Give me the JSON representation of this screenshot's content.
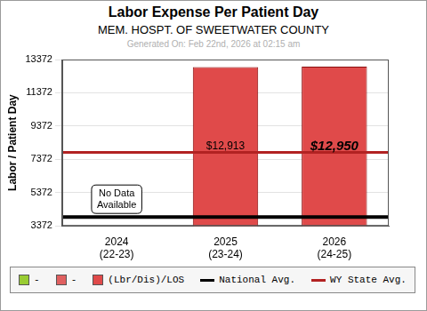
{
  "chart_data": {
    "type": "bar",
    "title": "Labor Expense Per Patient Day",
    "subtitle": "MEM. HOSPT. OF SWEETWATER COUNTY",
    "note": "Generated On: Feb 22nd, 2026 at 02:15 am",
    "y_label": "Labor / Patient Day",
    "categories": [
      "2024\n(22-23)",
      "2025\n(23-24)",
      "2026\n(24-25)"
    ],
    "series": [
      {
        "name": "-",
        "color": "#99cc33",
        "values": [
          null,
          null,
          null
        ]
      },
      {
        "name": "-",
        "color": "#e06060",
        "values": [
          null,
          null,
          null
        ]
      },
      {
        "name": "(Lbr/Dis)/LOS",
        "color": "#e04a4a",
        "values": [
          null,
          12913,
          12950
        ],
        "value_labels": [
          null,
          "$12,913",
          "$12,950"
        ]
      }
    ],
    "reference_lines": [
      {
        "name": "National Avg.",
        "value": 3900,
        "color": "#000000"
      },
      {
        "name": "WY State Avg.",
        "value": 7790,
        "color": "#b22222"
      }
    ],
    "annotations": [
      {
        "text": "No Data Available",
        "category": "2024\n(22-23)"
      }
    ],
    "ylim": [
      3372,
      13372
    ],
    "yticks": [
      3372,
      5372,
      7372,
      9372,
      11372,
      13372
    ],
    "grid": true,
    "data_labels": true,
    "legend": "bottom"
  }
}
